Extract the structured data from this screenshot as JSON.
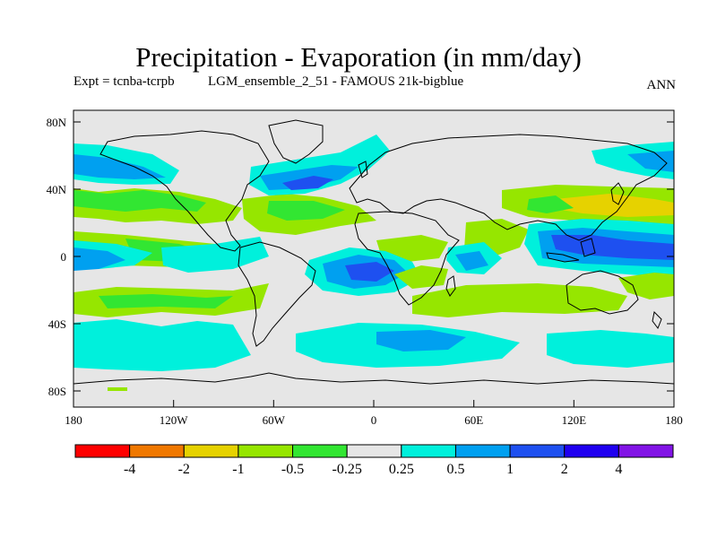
{
  "header": {
    "title": "Precipitation - Evaporation (in mm/day)",
    "expt": "Expt = tcnba-tcrpb",
    "ensemble": "LGM_ensemble_2_51 - FAMOUS 21k-bigblue",
    "season": "ANN"
  },
  "map": {
    "lat_labels": [
      "80N",
      "40N",
      "0",
      "40S",
      "80S"
    ],
    "lon_labels": [
      "180",
      "120W",
      "60W",
      "0",
      "60E",
      "120E",
      "180"
    ],
    "background_color": "#e6e6e6",
    "coastline_color": "#000000"
  },
  "colorbar": {
    "colors": [
      "#ff0000",
      "#f07800",
      "#e6d200",
      "#96e600",
      "#32e632",
      "#e6e6e6",
      "#00f0dc",
      "#00a0f0",
      "#1e50f0",
      "#2000f0",
      "#8214e6"
    ],
    "labels": [
      "-4",
      "-2",
      "-1",
      "-0.5",
      "-0.25",
      "0.25",
      "0.5",
      "1",
      "2",
      "4"
    ]
  },
  "legend_colors": {
    "moderate_dry": "#96e600",
    "slight_dry": "#32e632",
    "slight_wet": "#00f0dc",
    "moderate_wet": "#00a0f0",
    "wet": "#1e50f0",
    "dry": "#e6d200"
  }
}
